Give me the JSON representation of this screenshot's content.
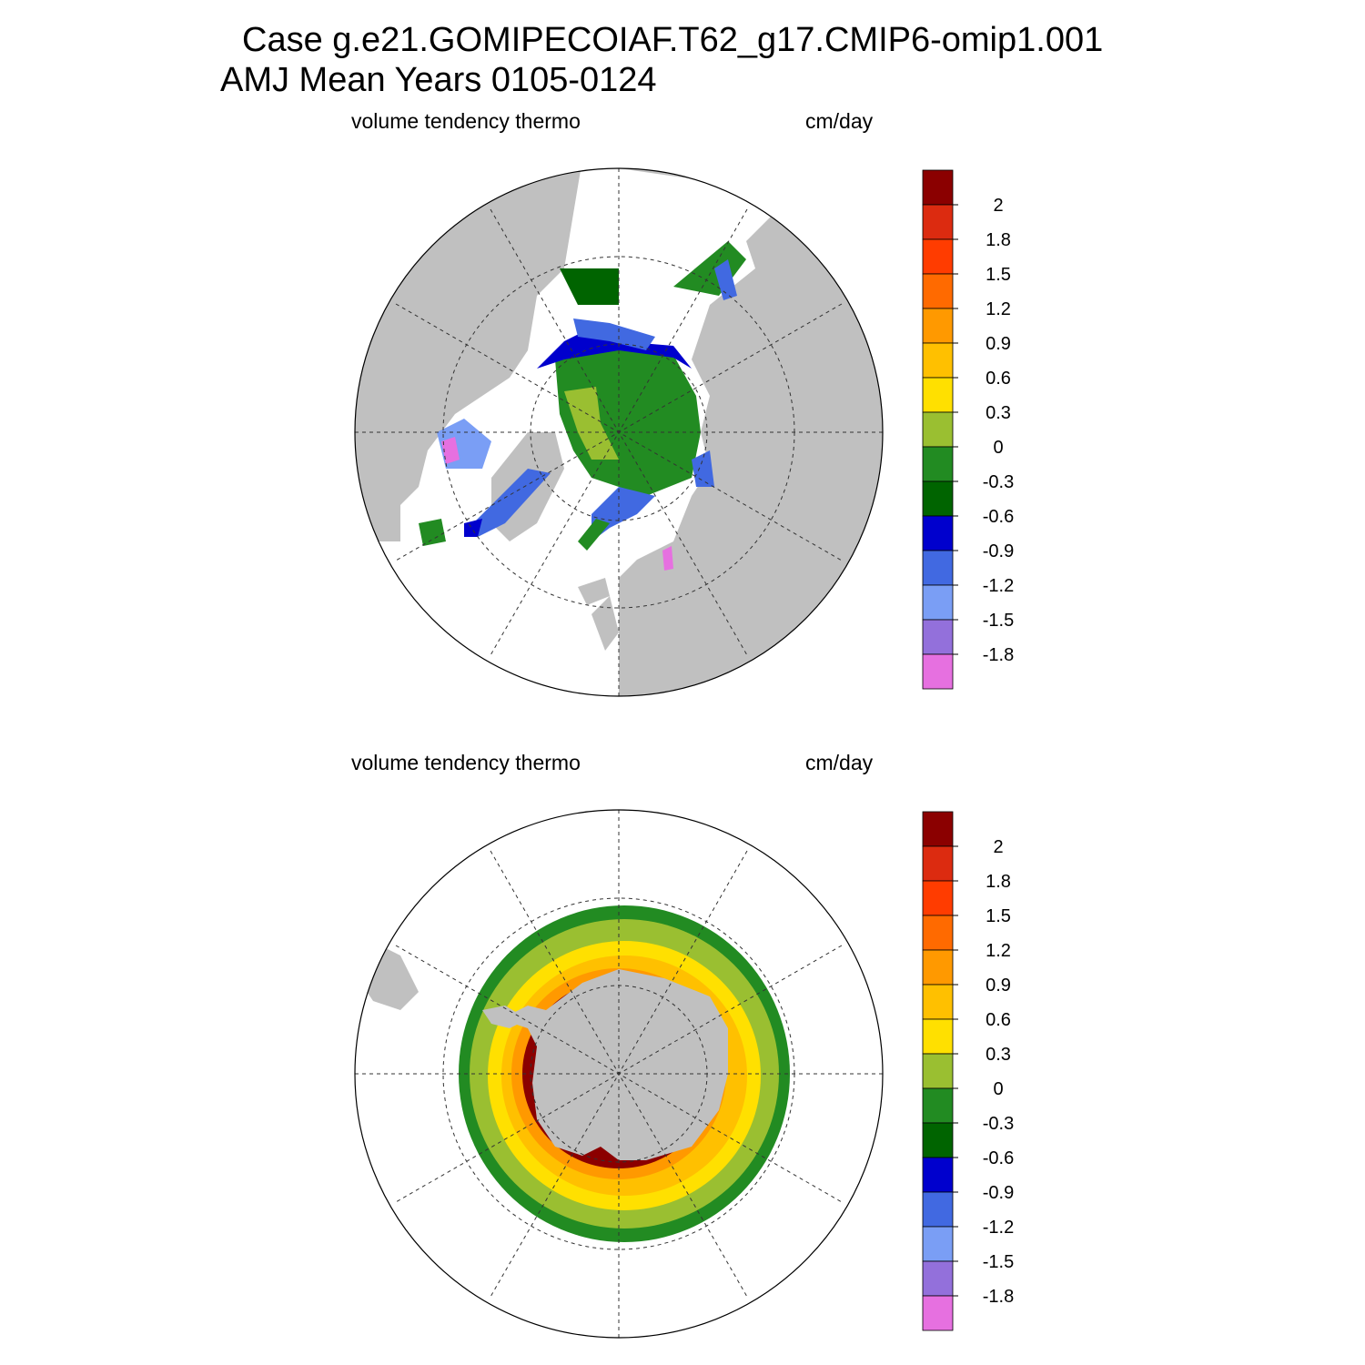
{
  "header": {
    "case_line": "Case g.e21.GOMIPECOIAF.T62_g17.CMIP6-omip1.001",
    "period_line": "AMJ Mean    Years 0105-0124"
  },
  "panels": [
    {
      "left_label": "volume tendency thermo",
      "right_label": "cm/day",
      "hemisphere": "north"
    },
    {
      "left_label": "volume tendency thermo",
      "right_label": "cm/day",
      "hemisphere": "south"
    }
  ],
  "colorbar": {
    "labels": [
      "2",
      "1.8",
      "1.5",
      "1.2",
      "0.9",
      "0.6",
      "0.3",
      "0",
      "-0.3",
      "-0.6",
      "-0.9",
      "-1.2",
      "-1.5",
      "-1.8"
    ],
    "colors": [
      "#8b0000",
      "#dc2b10",
      "#ff3c00",
      "#ff6a00",
      "#ff9900",
      "#ffc000",
      "#ffe000",
      "#9abf31",
      "#228b22",
      "#006400",
      "#0000cd",
      "#4169e1",
      "#7a9ef5",
      "#9370db",
      "#e670e0"
    ]
  },
  "map_style": {
    "land": "#c0c0c0",
    "ocean": "#ffffff"
  }
}
